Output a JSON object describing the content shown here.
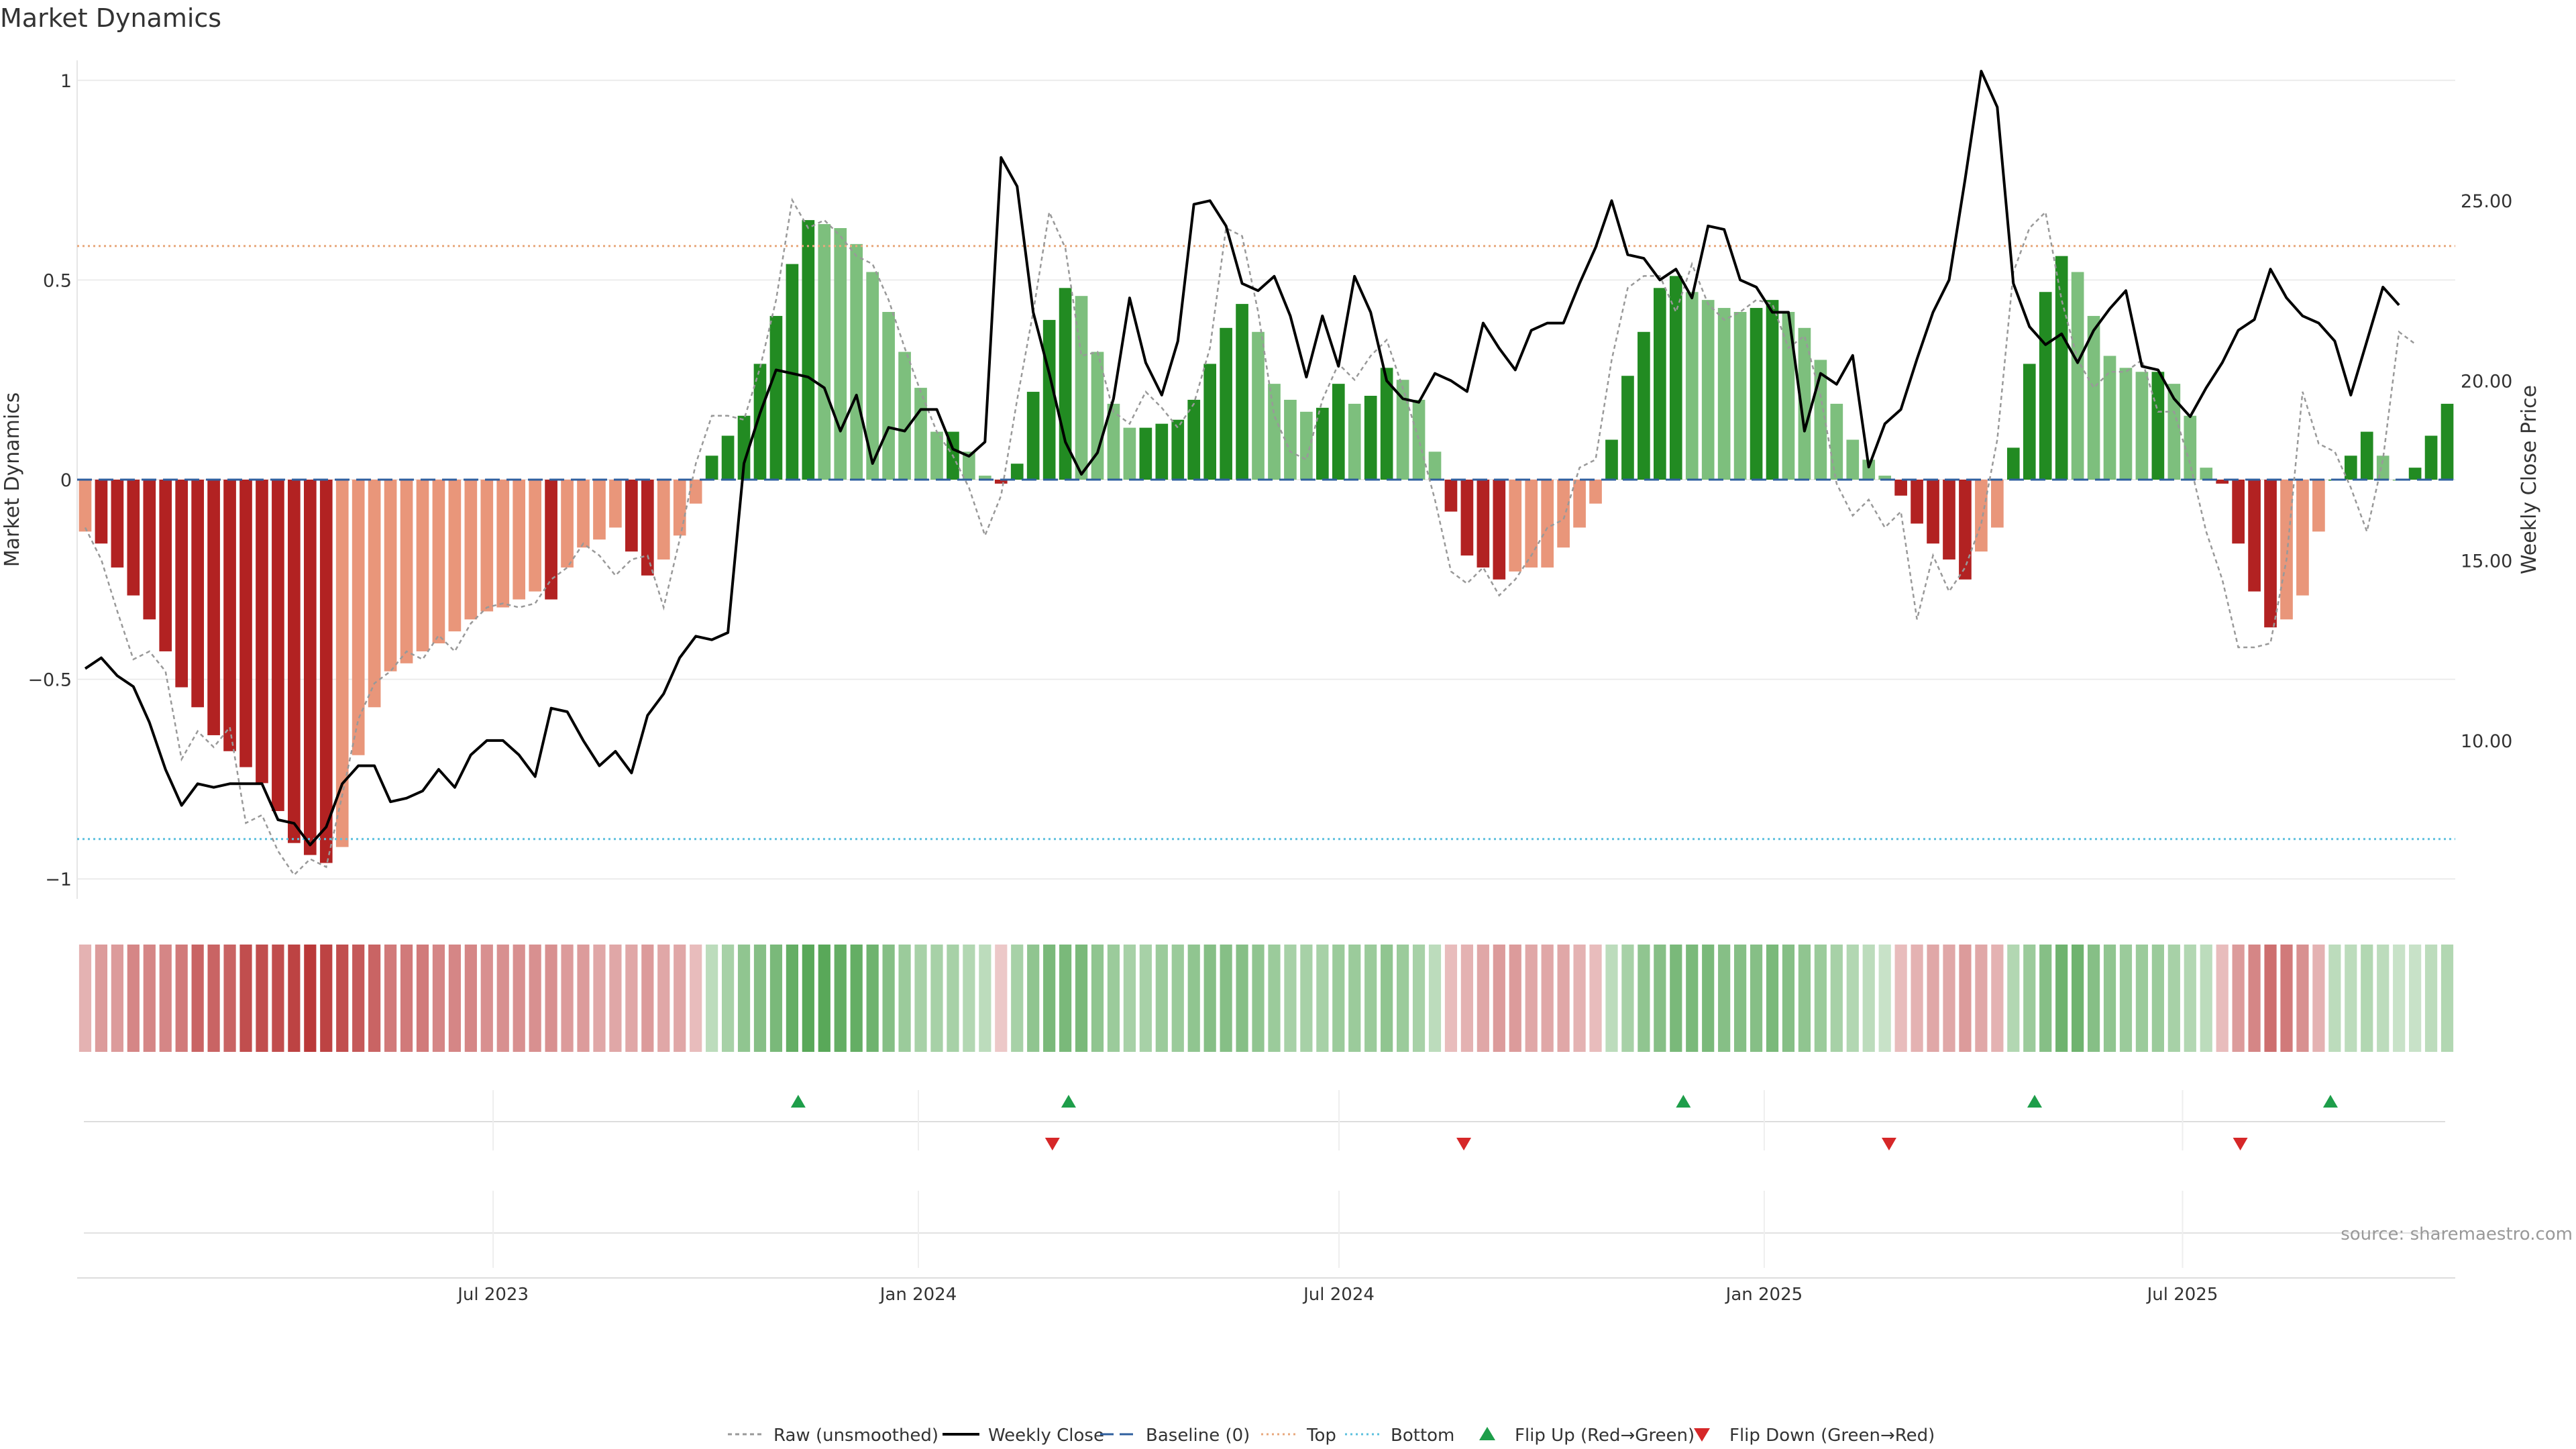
{
  "chart_data": {
    "type": "bar",
    "title": "Market Dynamics",
    "ylabel": "Market Dynamics",
    "y2label": "Weekly Close Price",
    "ylim": [
      -1.05,
      1.05
    ],
    "y2lim": [
      5.6,
      28.9
    ],
    "yticks": [
      1,
      0.5,
      0,
      -0.5,
      -1
    ],
    "ytick_labels": [
      "1",
      "0.5",
      "0",
      "−0.5",
      "−1"
    ],
    "y2ticks": [
      25,
      20,
      15,
      10
    ],
    "y2tick_labels": [
      "25.00",
      "20.00",
      "15.00",
      "10.00"
    ],
    "x_start": "2023-01-02",
    "x_end": "2025-10-27",
    "xticks": [
      "2023-07-01",
      "2024-01-01",
      "2024-07-01",
      "2025-01-01",
      "2025-07-01"
    ],
    "xtick_labels": [
      "Jul 2023",
      "Jan 2024",
      "Jul 2024",
      "Jan 2025",
      "Jul 2025"
    ],
    "top_level": 0.585,
    "bottom_level": -0.9,
    "baseline": 0,
    "colors": {
      "strong_up": "#228b22",
      "weak_up": "#7dbf7d",
      "strong_down": "#b22222",
      "weak_down": "#e9967a",
      "weekly_close": "#000000",
      "raw": "#999999",
      "baseline": "#2f5f9f",
      "top": "#e8a87c",
      "bottom": "#5bc0de",
      "flip_up": "#1e9e4a",
      "flip_down": "#d62728"
    },
    "series": [
      {
        "name": "Market Dynamics",
        "values": [
          -0.13,
          -0.16,
          -0.22,
          -0.29,
          -0.35,
          -0.43,
          -0.52,
          -0.57,
          -0.64,
          -0.68,
          -0.72,
          -0.76,
          -0.83,
          -0.91,
          -0.94,
          -0.96,
          -0.92,
          -0.69,
          -0.57,
          -0.48,
          -0.46,
          -0.43,
          -0.41,
          -0.38,
          -0.35,
          -0.33,
          -0.32,
          -0.3,
          -0.28,
          -0.3,
          -0.22,
          -0.17,
          -0.15,
          -0.12,
          -0.18,
          -0.24,
          -0.2,
          -0.14,
          -0.06,
          0.06,
          0.11,
          0.16,
          0.29,
          0.41,
          0.54,
          0.65,
          0.64,
          0.63,
          0.59,
          0.52,
          0.42,
          0.32,
          0.23,
          0.12,
          0.12,
          0.07,
          0.01,
          -0.01,
          0.04,
          0.22,
          0.4,
          0.48,
          0.46,
          0.32,
          0.19,
          0.13,
          0.13,
          0.14,
          0.15,
          0.2,
          0.29,
          0.38,
          0.44,
          0.37,
          0.24,
          0.2,
          0.17,
          0.18,
          0.24,
          0.19,
          0.21,
          0.28,
          0.25,
          0.2,
          0.07,
          -0.08,
          -0.19,
          -0.22,
          -0.25,
          -0.23,
          -0.22,
          -0.22,
          -0.17,
          -0.12,
          -0.06,
          0.1,
          0.26,
          0.37,
          0.48,
          0.51,
          0.47,
          0.45,
          0.43,
          0.42,
          0.43,
          0.45,
          0.42,
          0.38,
          0.3,
          0.19,
          0.1,
          0.05,
          0.01,
          -0.04,
          -0.11,
          -0.16,
          -0.2,
          -0.25,
          -0.18,
          -0.12,
          0.08,
          0.29,
          0.47,
          0.56,
          0.52,
          0.41,
          0.31,
          0.28,
          0.27,
          0.27,
          0.24,
          0.16,
          0.03,
          -0.01,
          -0.16,
          -0.28,
          -0.37,
          -0.35,
          -0.29,
          -0.13,
          0.0,
          0.06,
          0.12,
          0.06,
          0.0,
          0.03,
          0.11,
          0.19
        ]
      },
      {
        "name": "Raw (unsmoothed)",
        "values": [
          -0.12,
          -0.2,
          -0.33,
          -0.45,
          -0.43,
          -0.48,
          -0.7,
          -0.63,
          -0.67,
          -0.62,
          -0.86,
          -0.84,
          -0.93,
          -0.99,
          -0.95,
          -0.97,
          -0.79,
          -0.6,
          -0.51,
          -0.48,
          -0.43,
          -0.45,
          -0.39,
          -0.43,
          -0.36,
          -0.32,
          -0.31,
          -0.32,
          -0.31,
          -0.25,
          -0.22,
          -0.16,
          -0.19,
          -0.24,
          -0.2,
          -0.19,
          -0.32,
          -0.15,
          0.04,
          0.16,
          0.16,
          0.15,
          0.28,
          0.45,
          0.7,
          0.63,
          0.65,
          0.61,
          0.56,
          0.54,
          0.45,
          0.33,
          0.22,
          0.12,
          0.06,
          -0.02,
          -0.14,
          -0.04,
          0.2,
          0.42,
          0.67,
          0.58,
          0.31,
          0.32,
          0.17,
          0.14,
          0.22,
          0.18,
          0.13,
          0.19,
          0.33,
          0.63,
          0.61,
          0.42,
          0.16,
          0.07,
          0.05,
          0.2,
          0.29,
          0.25,
          0.31,
          0.35,
          0.23,
          0.1,
          -0.05,
          -0.23,
          -0.26,
          -0.22,
          -0.29,
          -0.25,
          -0.19,
          -0.12,
          -0.1,
          0.03,
          0.05,
          0.3,
          0.48,
          0.51,
          0.51,
          0.42,
          0.54,
          0.44,
          0.4,
          0.42,
          0.45,
          0.44,
          0.33,
          0.36,
          0.21,
          -0.01,
          -0.09,
          -0.05,
          -0.12,
          -0.08,
          -0.35,
          -0.19,
          -0.28,
          -0.22,
          -0.11,
          0.1,
          0.52,
          0.63,
          0.67,
          0.45,
          0.3,
          0.23,
          0.27,
          0.27,
          0.3,
          0.17,
          0.17,
          0.04,
          -0.13,
          -0.25,
          -0.42,
          -0.42,
          -0.41,
          -0.2,
          0.22,
          0.09,
          0.07,
          -0.02,
          -0.13,
          0.05,
          0.37,
          0.34
        ]
      },
      {
        "name": "Weekly Close",
        "values": [
          12.0,
          12.3,
          11.8,
          11.5,
          10.5,
          9.2,
          8.2,
          8.8,
          8.7,
          8.8,
          8.8,
          8.8,
          7.8,
          7.7,
          7.1,
          7.6,
          8.8,
          9.3,
          9.3,
          8.3,
          8.4,
          8.6,
          9.2,
          8.7,
          9.6,
          10.0,
          10.0,
          9.6,
          9.0,
          10.9,
          10.8,
          10.0,
          9.3,
          9.7,
          9.1,
          10.7,
          11.3,
          12.3,
          12.9,
          12.8,
          13.0,
          17.7,
          19.1,
          20.3,
          20.2,
          20.1,
          19.8,
          18.6,
          19.6,
          17.7,
          18.7,
          18.6,
          19.2,
          19.2,
          18.1,
          17.9,
          18.3,
          26.2,
          25.4,
          21.9,
          20.2,
          18.3,
          17.4,
          18.0,
          19.5,
          22.3,
          20.5,
          19.6,
          21.1,
          24.9,
          25.0,
          24.3,
          22.7,
          22.5,
          22.9,
          21.8,
          20.1,
          21.8,
          20.4,
          22.9,
          21.9,
          20.0,
          19.5,
          19.4,
          20.2,
          20.0,
          19.7,
          21.6,
          20.9,
          20.3,
          21.4,
          21.6,
          21.6,
          22.7,
          23.7,
          25.0,
          23.5,
          23.4,
          22.8,
          23.1,
          22.3,
          24.3,
          24.2,
          22.8,
          22.6,
          21.9,
          21.9,
          18.6,
          20.2,
          19.9,
          20.7,
          17.6,
          18.8,
          19.2,
          20.6,
          21.9,
          22.8,
          25.6,
          28.6,
          27.6,
          22.7,
          21.5,
          21.0,
          21.3,
          20.5,
          21.4,
          22.0,
          22.5,
          20.4,
          20.3,
          19.5,
          19.0,
          19.8,
          20.5,
          21.4,
          21.7,
          23.1,
          22.3,
          21.8,
          21.6,
          21.1,
          19.6,
          21.1,
          22.6,
          22.1
        ]
      }
    ],
    "regime_strip": {
      "values": [
        0.35,
        0.45,
        0.45,
        0.55,
        0.55,
        0.55,
        0.6,
        0.7,
        0.7,
        0.7,
        0.8,
        0.8,
        0.8,
        0.85,
        0.9,
        0.85,
        0.8,
        0.75,
        0.7,
        0.6,
        0.6,
        0.6,
        0.55,
        0.55,
        0.55,
        0.5,
        0.5,
        0.5,
        0.5,
        0.5,
        0.45,
        0.45,
        0.4,
        0.4,
        0.4,
        0.45,
        0.4,
        0.4,
        0.3,
        0.3,
        0.4,
        0.5,
        0.55,
        0.6,
        0.7,
        0.75,
        0.75,
        0.7,
        0.7,
        0.65,
        0.55,
        0.45,
        0.4,
        0.4,
        0.4,
        0.35,
        0.3,
        0.25,
        0.4,
        0.5,
        0.6,
        0.6,
        0.6,
        0.5,
        0.45,
        0.4,
        0.4,
        0.45,
        0.45,
        0.5,
        0.55,
        0.55,
        0.55,
        0.5,
        0.45,
        0.4,
        0.4,
        0.4,
        0.45,
        0.45,
        0.45,
        0.5,
        0.45,
        0.4,
        0.3,
        0.3,
        0.35,
        0.4,
        0.45,
        0.45,
        0.4,
        0.4,
        0.4,
        0.35,
        0.3,
        0.3,
        0.4,
        0.5,
        0.55,
        0.6,
        0.6,
        0.6,
        0.55,
        0.55,
        0.55,
        0.6,
        0.55,
        0.5,
        0.45,
        0.4,
        0.35,
        0.3,
        0.25,
        0.3,
        0.35,
        0.4,
        0.4,
        0.45,
        0.4,
        0.35,
        0.35,
        0.45,
        0.55,
        0.65,
        0.65,
        0.55,
        0.5,
        0.45,
        0.45,
        0.45,
        0.4,
        0.35,
        0.3,
        0.3,
        0.45,
        0.55,
        0.65,
        0.6,
        0.5,
        0.35,
        0.3,
        0.3,
        0.35,
        0.3,
        0.25,
        0.25,
        0.3,
        0.35
      ]
    },
    "flip_up_dates": [
      "2023-11-10",
      "2024-03-06",
      "2024-11-27",
      "2025-04-28",
      "2025-09-03"
    ],
    "flip_down_dates": [
      "2024-02-28",
      "2024-08-24",
      "2025-02-24",
      "2025-07-26"
    ],
    "legend": {
      "placement": "bottom-center",
      "entries": [
        {
          "label": "Raw (unsmoothed)",
          "kind": "raw"
        },
        {
          "label": "Weekly Close",
          "kind": "close"
        },
        {
          "label": "Baseline (0)",
          "kind": "baseline"
        },
        {
          "label": "Top",
          "kind": "top"
        },
        {
          "label": "Bottom",
          "kind": "bottom"
        },
        {
          "label": "Flip Up (Red→Green)",
          "kind": "flipup"
        },
        {
          "label": "Flip Down (Green→Red)",
          "kind": "flipdown"
        }
      ]
    },
    "source_note": "source: sharemaestro.com"
  }
}
